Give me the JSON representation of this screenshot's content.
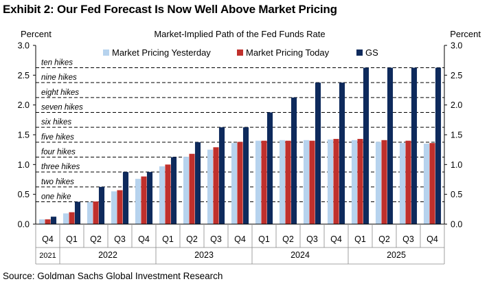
{
  "exhibit": {
    "title": "Exhibit 2: Our Fed Forecast Is Now Well Above Market Pricing",
    "source": "Source: Goldman Sachs Global Investment Research"
  },
  "chart_data": {
    "type": "bar",
    "title": "Market-Implied  Path of the Fed Funds Rate",
    "ylabel_left": "Percent",
    "ylabel_right": "Percent",
    "ylim": [
      0,
      3.0
    ],
    "yticks": [
      "0.0",
      "0.5",
      "1.0",
      "1.5",
      "2.0",
      "2.5",
      "3.0"
    ],
    "legend_position": "top",
    "categories": [
      "Q4",
      "Q1",
      "Q2",
      "Q3",
      "Q4",
      "Q1",
      "Q2",
      "Q3",
      "Q4",
      "Q1",
      "Q2",
      "Q3",
      "Q4",
      "Q1",
      "Q2",
      "Q3",
      "Q4"
    ],
    "year_groups": [
      {
        "label": "2021",
        "span": 1
      },
      {
        "label": "2022",
        "span": 4
      },
      {
        "label": "2023",
        "span": 4
      },
      {
        "label": "2024",
        "span": 4
      },
      {
        "label": "2025",
        "span": 4
      }
    ],
    "series": [
      {
        "name": "Market Pricing Yesterday",
        "color": "#b7d3ee",
        "values": [
          0.08,
          0.18,
          0.37,
          0.55,
          0.76,
          0.97,
          1.13,
          1.25,
          1.36,
          1.4,
          1.41,
          1.41,
          1.42,
          1.41,
          1.38,
          1.36,
          1.35
        ]
      },
      {
        "name": "Market Pricing Today",
        "color": "#c0302c",
        "values": [
          0.08,
          0.2,
          0.38,
          0.57,
          0.8,
          1.0,
          1.18,
          1.29,
          1.38,
          1.4,
          1.4,
          1.4,
          1.43,
          1.43,
          1.41,
          1.4,
          1.36
        ]
      },
      {
        "name": "GS",
        "color": "#0e2a5c",
        "values": [
          0.125,
          0.375,
          0.625,
          0.875,
          0.875,
          1.125,
          1.375,
          1.625,
          1.625,
          1.875,
          2.125,
          2.375,
          2.375,
          2.625,
          2.625,
          2.625,
          2.625
        ]
      }
    ],
    "reference_lines": [
      {
        "label": "one hike",
        "value": 0.375
      },
      {
        "label": "two hikes",
        "value": 0.625
      },
      {
        "label": "three hikes",
        "value": 0.875
      },
      {
        "label": "four hikes",
        "value": 1.125
      },
      {
        "label": "five hikes",
        "value": 1.375
      },
      {
        "label": "six hikes",
        "value": 1.625
      },
      {
        "label": "seven hikes",
        "value": 1.875
      },
      {
        "label": "eight hikes",
        "value": 2.125
      },
      {
        "label": "nine hikes",
        "value": 2.375
      },
      {
        "label": "ten hikes",
        "value": 2.625
      }
    ]
  }
}
